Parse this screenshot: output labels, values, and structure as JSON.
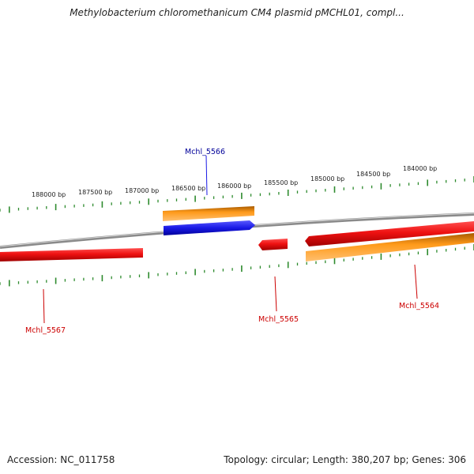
{
  "header": {
    "title": "Methylobacterium chloromethanicum CM4 plasmid pMCHL01, compl..."
  },
  "footer": {
    "accession": "Accession: NC_011758",
    "summary": "Topology: circular; Length: 380,207 bp; Genes: 306"
  },
  "colors": {
    "backbone": "#8a8a8a",
    "ticks": "#2e8b2e",
    "gene_red": "#ee1111",
    "gene_orange": "#ff9a1a",
    "gene_blue": "#1a1ae6",
    "label_red": "#cc0000",
    "label_blue": "#000099"
  },
  "scale": {
    "ticks": [
      {
        "label": "188000 bp"
      },
      {
        "label": "187500 bp"
      },
      {
        "label": "187000 bp"
      },
      {
        "label": "186500 bp"
      },
      {
        "label": "186000 bp"
      },
      {
        "label": "185500 bp"
      },
      {
        "label": "185000 bp"
      },
      {
        "label": "184500 bp"
      },
      {
        "label": "184000 bp"
      }
    ]
  },
  "genes": [
    {
      "id": "Mchl_5566",
      "label": "Mchl_5566",
      "color": "blue"
    },
    {
      "id": "Mchl_5567",
      "label": "Mchl_5567",
      "color": "red"
    },
    {
      "id": "Mchl_5565",
      "label": "Mchl_5565",
      "color": "red"
    },
    {
      "id": "Mchl_5564",
      "label": "Mchl_5564",
      "color": "red"
    }
  ]
}
